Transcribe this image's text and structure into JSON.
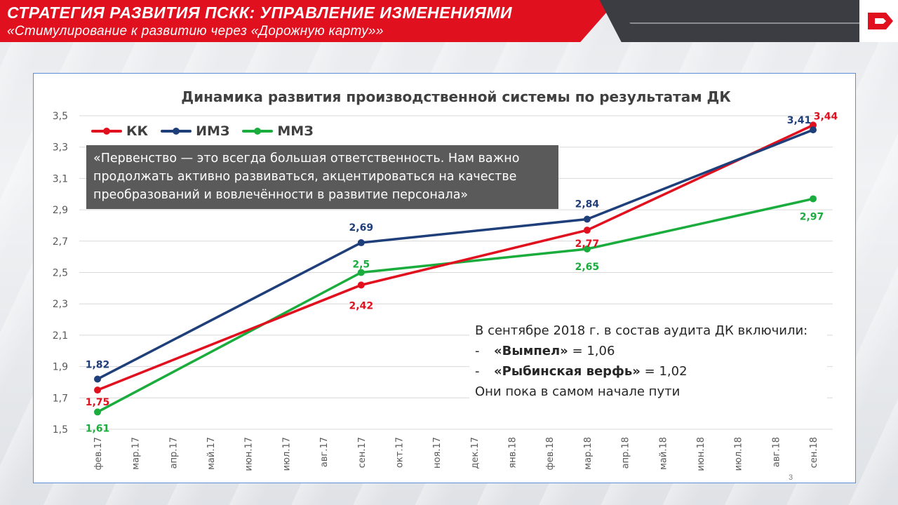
{
  "header": {
    "title": "СТРАТЕГИЯ РАЗВИТИЯ ПСКК: УПРАВЛЕНИЕ ИЗМЕНЕНИЯМИ",
    "subtitle": "«Стимулирование к развитию через «Дорожную карту»»"
  },
  "quote": "«Первенство — это всегда большая ответственность. Нам важно продолжать активно развиваться, акцентироваться на качестве преобразований и вовлечённости в развитие персонала»",
  "note": {
    "line1": "В сентябре 2018 г. в состав аудита ДК включили:",
    "item1_dash": "-",
    "item1_name": "«Вымпел»",
    "item1_value": " = 1,06",
    "item2_dash": "-",
    "item2_name": "«Рыбинская верфь»",
    "item2_value": " = 1,02",
    "line4": "Они пока в самом начале пути"
  },
  "page_number": "3",
  "colors": {
    "red": "#e1101f",
    "navy": "#1f3f7a",
    "green": "#1aac3c"
  },
  "chart_data": {
    "type": "line",
    "title": "Динамика развития производственной системы по результатам ДК",
    "xlabel": "",
    "ylabel": "",
    "categories": [
      "фев.17",
      "мар.17",
      "апр.17",
      "май.17",
      "июн.17",
      "июл.17",
      "авг.17",
      "сен.17",
      "окт.17",
      "ноя.17",
      "дек.17",
      "янв.18",
      "фев.18",
      "мар.18",
      "апр.18",
      "май.18",
      "июн.18",
      "июл.18",
      "авг.18",
      "сен.18"
    ],
    "y_ticks": [
      "1,5",
      "1,7",
      "1,9",
      "2,1",
      "2,3",
      "2,5",
      "2,7",
      "2,9",
      "3,1",
      "3,3",
      "3,5"
    ],
    "ylim": [
      1.5,
      3.5
    ],
    "grid": true,
    "legend": "top-left",
    "series": [
      {
        "name": "КК",
        "color": "#e1101f",
        "points": [
          {
            "x": "фев.17",
            "y": 1.75,
            "label": "1,75"
          },
          {
            "x": "сен.17",
            "y": 2.42,
            "label": "2,42"
          },
          {
            "x": "мар.18",
            "y": 2.77,
            "label": "2,77"
          },
          {
            "x": "сен.18",
            "y": 3.44,
            "label": "3,44"
          }
        ]
      },
      {
        "name": "ИМЗ",
        "color": "#1f3f7a",
        "points": [
          {
            "x": "фев.17",
            "y": 1.82,
            "label": "1,82"
          },
          {
            "x": "сен.17",
            "y": 2.69,
            "label": "2,69"
          },
          {
            "x": "мар.18",
            "y": 2.84,
            "label": "2,84"
          },
          {
            "x": "сен.18",
            "y": 3.41,
            "label": "3,41"
          }
        ]
      },
      {
        "name": "ММЗ",
        "color": "#1aac3c",
        "points": [
          {
            "x": "фев.17",
            "y": 1.61,
            "label": "1,61"
          },
          {
            "x": "сен.17",
            "y": 2.5,
            "label": "2,5"
          },
          {
            "x": "мар.18",
            "y": 2.65,
            "label": "2,65"
          },
          {
            "x": "сен.18",
            "y": 2.97,
            "label": "2,97"
          }
        ]
      }
    ]
  }
}
